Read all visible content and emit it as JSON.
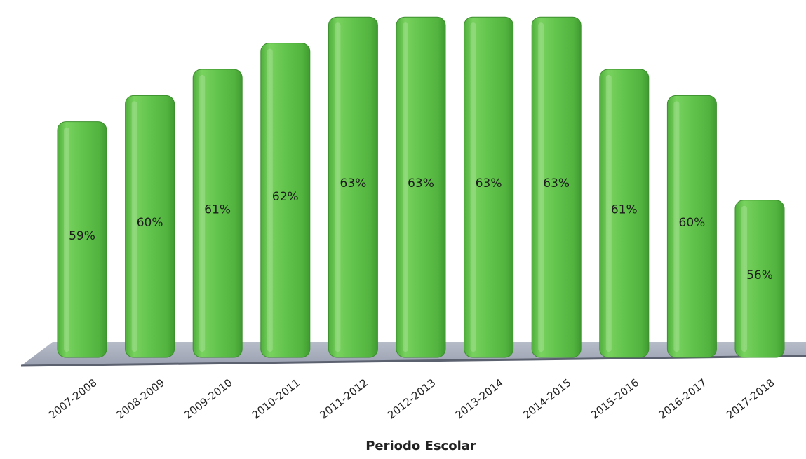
{
  "chart_data": {
    "type": "bar",
    "xlabel": "Periodo Escolar",
    "categories": [
      "2007-2008",
      "2008-2009",
      "2009-2010",
      "2010-2011",
      "2011-2012",
      "2012-2013",
      "2013-2014",
      "2014-2015",
      "2015-2016",
      "2016-2017",
      "2017-2018"
    ],
    "values": [
      59,
      60,
      61,
      62,
      63,
      63,
      63,
      63,
      61,
      60,
      56
    ],
    "data_labels": [
      "59%",
      "60%",
      "61%",
      "62%",
      "63%",
      "63%",
      "63%",
      "63%",
      "61%",
      "60%",
      "56%"
    ],
    "bar_color": "#5fc14a",
    "floor_color": "#a8aebd",
    "grid": false,
    "legend": "none"
  }
}
